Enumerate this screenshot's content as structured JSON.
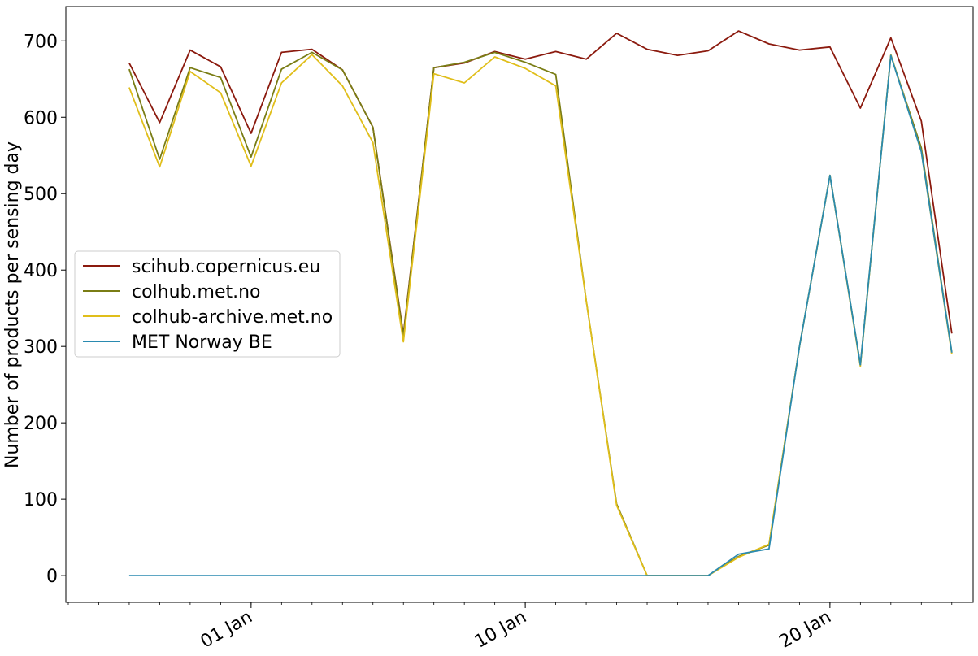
{
  "chart_data": {
    "type": "line",
    "ylabel": "Number of products per sensing day",
    "xlabel": "",
    "x_dates": [
      "2021-12-28",
      "2021-12-29",
      "2021-12-30",
      "2021-12-31",
      "2022-01-01",
      "2022-01-02",
      "2022-01-03",
      "2022-01-04",
      "2022-01-05",
      "2022-01-06",
      "2022-01-07",
      "2022-01-08",
      "2022-01-09",
      "2022-01-10",
      "2022-01-11",
      "2022-01-12",
      "2022-01-13",
      "2022-01-14",
      "2022-01-15",
      "2022-01-16",
      "2022-01-17",
      "2022-01-18",
      "2022-01-19",
      "2022-01-20",
      "2022-01-21",
      "2022-01-22",
      "2022-01-23",
      "2022-01-24"
    ],
    "xlim": [
      "2021-12-26",
      "2022-01-25"
    ],
    "ylim": [
      -35,
      745
    ],
    "x_ticks": [
      {
        "date": "2022-01-01",
        "label": "01 Jan"
      },
      {
        "date": "2022-01-10",
        "label": "10 Jan"
      },
      {
        "date": "2022-01-20",
        "label": "20 Jan"
      }
    ],
    "y_ticks": [
      0,
      100,
      200,
      300,
      400,
      500,
      600,
      700
    ],
    "legend_position": "center-left",
    "series": [
      {
        "name": "scihub.copernicus.eu",
        "color": "#8b1a0e",
        "values": [
          671,
          593,
          688,
          666,
          579,
          685,
          689,
          662,
          587,
          316,
          665,
          671,
          686,
          676,
          686,
          676,
          710,
          689,
          681,
          687,
          713,
          696,
          688,
          692,
          612,
          704,
          595,
          317
        ]
      },
      {
        "name": "colhub.met.no",
        "color": "#7a7d15",
        "values": [
          663,
          545,
          665,
          652,
          548,
          663,
          685,
          662,
          587,
          314,
          665,
          672,
          685,
          672,
          656,
          360,
          94,
          0,
          0,
          0,
          25,
          40,
          300,
          524,
          276,
          681,
          560,
          292
        ]
      },
      {
        "name": "colhub-archive.met.no",
        "color": "#e0be1a",
        "values": [
          639,
          535,
          660,
          632,
          536,
          645,
          682,
          641,
          567,
          306,
          657,
          645,
          679,
          664,
          641,
          360,
          92,
          0,
          0,
          0,
          24,
          41,
          300,
          524,
          274,
          682,
          555,
          290
        ]
      },
      {
        "name": "MET Norway BE",
        "color": "#2a8ab0",
        "values": [
          0,
          0,
          0,
          0,
          0,
          0,
          0,
          0,
          0,
          0,
          0,
          0,
          0,
          0,
          0,
          0,
          0,
          0,
          0,
          0,
          28,
          35,
          300,
          524,
          276,
          681,
          555,
          292
        ]
      }
    ]
  }
}
